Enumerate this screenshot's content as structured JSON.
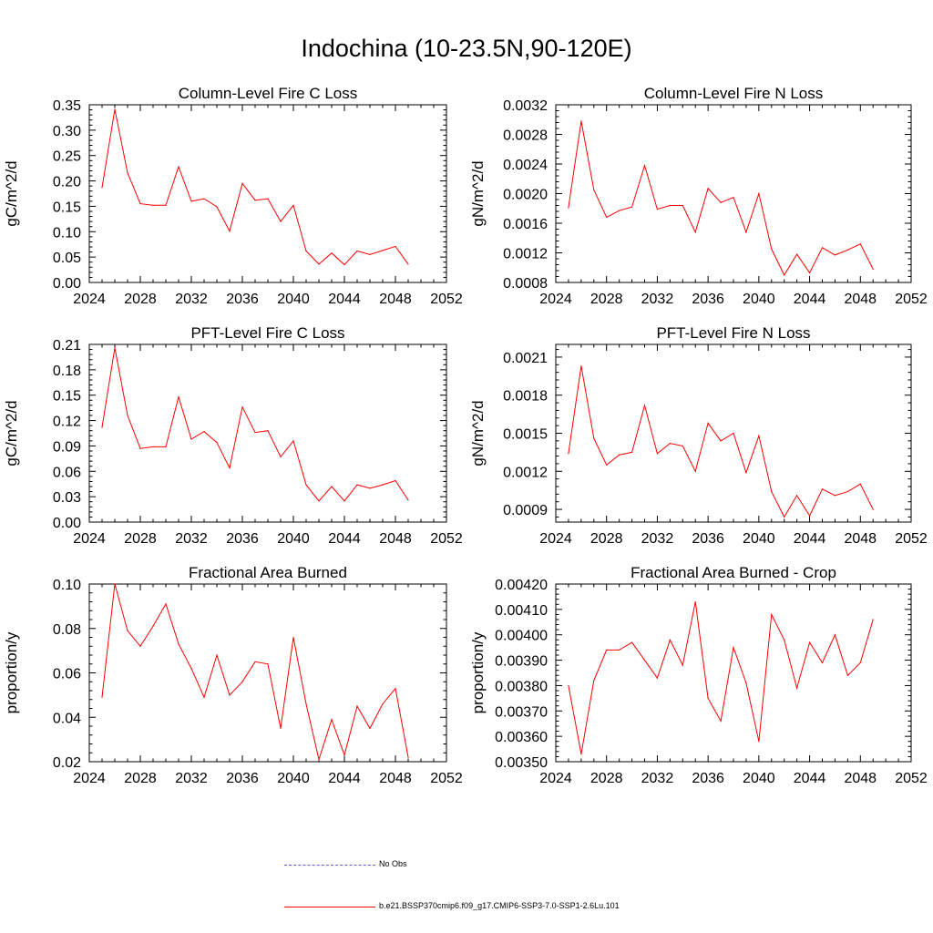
{
  "title": "Indochina (10-23.5N,90-120E)",
  "colors": {
    "model": "#ff0000",
    "obs": "#5a5fd6",
    "axis": "#000000"
  },
  "legend": [
    {
      "label": "No Obs",
      "style": "dashed",
      "color": "#5a5fd6"
    },
    {
      "label": "b.e21.BSSP370cmip6.f09_g17.CMIP6-SSP3-7.0-SSP1-2.6Lu.101",
      "style": "solid",
      "color": "#ff0000"
    }
  ],
  "chart_data": [
    {
      "type": "line",
      "title": "Column-Level Fire C Loss",
      "xlabel": "",
      "ylabel": "gC/m^2/d",
      "xlim": [
        2024,
        2052
      ],
      "ylim": [
        0,
        0.35
      ],
      "xticks": [
        "2024",
        "2028",
        "2032",
        "2036",
        "2040",
        "2044",
        "2048",
        "2052"
      ],
      "yticks": [
        "0.00",
        "0.05",
        "0.10",
        "0.15",
        "0.20",
        "0.25",
        "0.30",
        "0.35"
      ],
      "x": [
        2025,
        2026,
        2027,
        2028,
        2029,
        2030,
        2031,
        2032,
        2033,
        2034,
        2035,
        2036,
        2037,
        2038,
        2039,
        2040,
        2041,
        2042,
        2043,
        2044,
        2045,
        2046,
        2047,
        2048,
        2049
      ],
      "series": [
        {
          "values": [
            0.187,
            0.341,
            0.216,
            0.155,
            0.152,
            0.152,
            0.228,
            0.16,
            0.165,
            0.149,
            0.101,
            0.195,
            0.162,
            0.165,
            0.12,
            0.152,
            0.062,
            0.036,
            0.058,
            0.035,
            0.062,
            0.055,
            0.063,
            0.071,
            0.036
          ]
        }
      ]
    },
    {
      "type": "line",
      "title": "Column-Level Fire N Loss",
      "xlabel": "",
      "ylabel": "gN/m^2/d",
      "xlim": [
        2024,
        2052
      ],
      "ylim": [
        0.0008,
        0.0032
      ],
      "xticks": [
        "2024",
        "2028",
        "2032",
        "2036",
        "2040",
        "2044",
        "2048",
        "2052"
      ],
      "yticks": [
        "0.0008",
        "0.0012",
        "0.0016",
        "0.0020",
        "0.0024",
        "0.0028",
        "0.0032"
      ],
      "x": [
        2025,
        2026,
        2027,
        2028,
        2029,
        2030,
        2031,
        2032,
        2033,
        2034,
        2035,
        2036,
        2037,
        2038,
        2039,
        2040,
        2041,
        2042,
        2043,
        2044,
        2045,
        2046,
        2047,
        2048,
        2049
      ],
      "series": [
        {
          "values": [
            0.00181,
            0.00298,
            0.00205,
            0.00168,
            0.00177,
            0.00182,
            0.00238,
            0.00179,
            0.00184,
            0.00184,
            0.00148,
            0.00207,
            0.00188,
            0.00195,
            0.00148,
            0.002,
            0.00125,
            0.0009,
            0.00118,
            0.00093,
            0.00127,
            0.00117,
            0.00124,
            0.00132,
            0.00098
          ]
        }
      ]
    },
    {
      "type": "line",
      "title": "PFT-Level Fire C Loss",
      "xlabel": "",
      "ylabel": "gC/m^2/d",
      "xlim": [
        2024,
        2052
      ],
      "ylim": [
        0,
        0.21
      ],
      "xticks": [
        "2024",
        "2028",
        "2032",
        "2036",
        "2040",
        "2044",
        "2048",
        "2052"
      ],
      "yticks": [
        "0.00",
        "0.03",
        "0.06",
        "0.09",
        "0.12",
        "0.15",
        "0.18",
        "0.21"
      ],
      "x": [
        2025,
        2026,
        2027,
        2028,
        2029,
        2030,
        2031,
        2032,
        2033,
        2034,
        2035,
        2036,
        2037,
        2038,
        2039,
        2040,
        2041,
        2042,
        2043,
        2044,
        2045,
        2046,
        2047,
        2048,
        2049
      ],
      "series": [
        {
          "values": [
            0.112,
            0.206,
            0.126,
            0.087,
            0.089,
            0.089,
            0.148,
            0.098,
            0.107,
            0.094,
            0.064,
            0.136,
            0.106,
            0.108,
            0.077,
            0.096,
            0.044,
            0.025,
            0.042,
            0.025,
            0.044,
            0.04,
            0.044,
            0.049,
            0.026
          ]
        }
      ]
    },
    {
      "type": "line",
      "title": "PFT-Level Fire N Loss",
      "xlabel": "",
      "ylabel": "gN/m^2/d",
      "xlim": [
        2024,
        2052
      ],
      "ylim": [
        0.0008,
        0.0022
      ],
      "xticks": [
        "2024",
        "2028",
        "2032",
        "2036",
        "2040",
        "2044",
        "2048",
        "2052"
      ],
      "yticks": [
        "0.0009",
        "0.0012",
        "0.0015",
        "0.0018",
        "0.0021"
      ],
      "x": [
        2025,
        2026,
        2027,
        2028,
        2029,
        2030,
        2031,
        2032,
        2033,
        2034,
        2035,
        2036,
        2037,
        2038,
        2039,
        2040,
        2041,
        2042,
        2043,
        2044,
        2045,
        2046,
        2047,
        2048,
        2049
      ],
      "series": [
        {
          "values": [
            0.00134,
            0.00203,
            0.00146,
            0.00125,
            0.00133,
            0.00135,
            0.00172,
            0.00134,
            0.00142,
            0.0014,
            0.0012,
            0.00158,
            0.00144,
            0.0015,
            0.00119,
            0.00148,
            0.00104,
            0.00084,
            0.00101,
            0.00085,
            0.00106,
            0.00101,
            0.00104,
            0.0011,
            0.0009
          ]
        }
      ]
    },
    {
      "type": "line",
      "title": "Fractional Area Burned",
      "xlabel": "",
      "ylabel": "proportion/y",
      "xlim": [
        2024,
        2052
      ],
      "ylim": [
        0.02,
        0.1
      ],
      "xticks": [
        "2024",
        "2028",
        "2032",
        "2036",
        "2040",
        "2044",
        "2048",
        "2052"
      ],
      "yticks": [
        "0.02",
        "0.04",
        "0.06",
        "0.08",
        "0.10"
      ],
      "x": [
        2025,
        2026,
        2027,
        2028,
        2029,
        2030,
        2031,
        2032,
        2033,
        2034,
        2035,
        2036,
        2037,
        2038,
        2039,
        2040,
        2041,
        2042,
        2043,
        2044,
        2045,
        2046,
        2047,
        2048,
        2049
      ],
      "series": [
        {
          "values": [
            0.049,
            0.1,
            0.079,
            0.072,
            0.081,
            0.091,
            0.073,
            0.062,
            0.049,
            0.068,
            0.05,
            0.056,
            0.065,
            0.064,
            0.035,
            0.076,
            0.046,
            0.021,
            0.039,
            0.023,
            0.045,
            0.035,
            0.046,
            0.053,
            0.022
          ]
        }
      ]
    },
    {
      "type": "line",
      "title": "Fractional Area Burned - Crop",
      "xlabel": "",
      "ylabel": "proportion/y",
      "xlim": [
        2024,
        2052
      ],
      "ylim": [
        0.0035,
        0.0042
      ],
      "xticks": [
        "2024",
        "2028",
        "2032",
        "2036",
        "2040",
        "2044",
        "2048",
        "2052"
      ],
      "yticks": [
        "0.00350",
        "0.00360",
        "0.00370",
        "0.00380",
        "0.00390",
        "0.00400",
        "0.00410",
        "0.00420"
      ],
      "x": [
        2025,
        2026,
        2027,
        2028,
        2029,
        2030,
        2031,
        2032,
        2033,
        2034,
        2035,
        2036,
        2037,
        2038,
        2039,
        2040,
        2041,
        2042,
        2043,
        2044,
        2045,
        2046,
        2047,
        2048,
        2049
      ],
      "series": [
        {
          "values": [
            0.0038,
            0.00353,
            0.00382,
            0.00394,
            0.00394,
            0.00397,
            0.0039,
            0.00383,
            0.00398,
            0.00388,
            0.00413,
            0.00375,
            0.00366,
            0.00395,
            0.00381,
            0.00358,
            0.00408,
            0.00398,
            0.00379,
            0.00397,
            0.00389,
            0.004,
            0.00384,
            0.00389,
            0.00406
          ]
        }
      ]
    }
  ]
}
